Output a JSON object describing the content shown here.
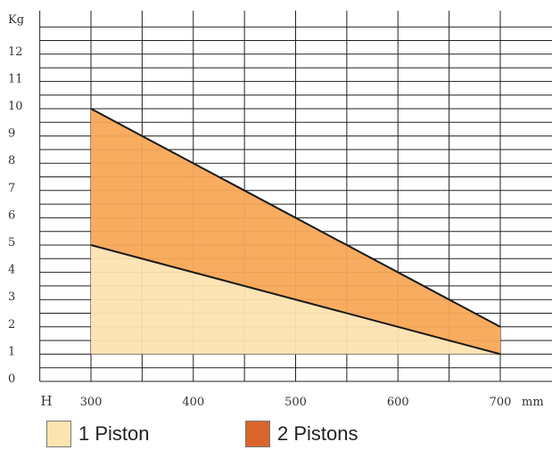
{
  "chart_data": {
    "type": "area",
    "y_unit": "Kg",
    "x_unit": "mm",
    "x_axis_marker": "H",
    "xlim": [
      250,
      700
    ],
    "ylim": [
      0,
      13
    ],
    "x_ticks": [
      "300",
      "400",
      "500",
      "600",
      "700"
    ],
    "y_ticks": [
      "0",
      "1",
      "2",
      "3",
      "4",
      "5",
      "6",
      "7",
      "8",
      "9",
      "10",
      "11",
      "12"
    ],
    "grid": true,
    "legend_position": "bottom",
    "baseline": 1,
    "series": [
      {
        "name": "1 Piston",
        "color": "#fde3b0",
        "x": [
          300,
          700
        ],
        "y": [
          5,
          1
        ]
      },
      {
        "name": "2 Pistons",
        "color": "#f7a857",
        "x": [
          300,
          700
        ],
        "y": [
          10,
          2
        ]
      }
    ],
    "legend": [
      {
        "name": "1 Piston",
        "color": "#fde3b0"
      },
      {
        "name": "2 Pistons",
        "color": "#d9652b"
      }
    ]
  }
}
